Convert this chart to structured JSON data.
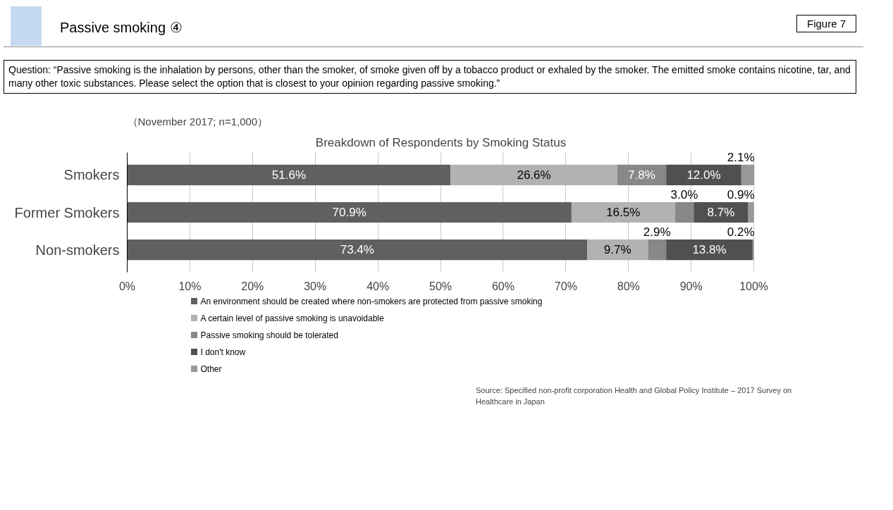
{
  "chart_data": {
    "type": "bar",
    "orientation": "horizontal",
    "stacked": true,
    "title": "Breakdown of Respondents by Smoking Status",
    "annotations": [
      "Passive smoking ④",
      "Figure 7",
      "Question: “Passive smoking is the inhalation by persons, other than the smoker, of smoke given off by a tobacco product or exhaled by the smoker. The emitted smoke contains nicotine, tar, and many other toxic substances. Please select the option that is closest to your opinion regarding passive smoking.”",
      "（November 2017; n=1,000）",
      "Source: Specified non-profit corporation Health and Global Policy Institute – 2017 Survey on Healthcare in Japan"
    ],
    "categories": [
      "Smokers",
      "Former Smokers",
      "Non-smokers"
    ],
    "series": [
      {
        "name": "An environment should be created where non-smokers are protected from passive smoking",
        "color": "#606060",
        "values": [
          51.6,
          70.9,
          73.4
        ],
        "value_labels": [
          "51.6%",
          "70.9%",
          "73.4%"
        ]
      },
      {
        "name": "A certain level of passive smoking is unavoidable",
        "color": "#b2b2b2",
        "values": [
          26.6,
          16.5,
          9.7
        ],
        "value_labels": [
          "26.6%",
          "16.5%",
          "9.7%"
        ]
      },
      {
        "name": "Passive smoking should be tolerated",
        "color": "#888888",
        "values": [
          7.8,
          3.0,
          2.9
        ],
        "value_labels": [
          "7.8%",
          "3.0%",
          "2.9%"
        ]
      },
      {
        "name": "I don't know",
        "color": "#505050",
        "values": [
          12.0,
          8.7,
          13.8
        ],
        "value_labels": [
          "12.0%",
          "8.7%",
          "13.8%"
        ]
      },
      {
        "name": "Other",
        "color": "#999999",
        "values": [
          2.1,
          0.9,
          0.2
        ],
        "value_labels": [
          "2.1%",
          "0.9%",
          "0.2%"
        ]
      }
    ],
    "xlim": [
      0,
      100.1
    ],
    "xticks": [
      {
        "value": 0,
        "label": "0%"
      },
      {
        "value": 10,
        "label": "10%"
      },
      {
        "value": 20,
        "label": "20%"
      },
      {
        "value": 30,
        "label": "30%"
      },
      {
        "value": 40,
        "label": "40%"
      },
      {
        "value": 50,
        "label": "50%"
      },
      {
        "value": 60,
        "label": "60%"
      },
      {
        "value": 70,
        "label": "70%"
      },
      {
        "value": 80,
        "label": "80%"
      },
      {
        "value": 90,
        "label": "90%"
      },
      {
        "value": 100,
        "label": "100%"
      }
    ],
    "grid": "x",
    "legend": "bottom"
  }
}
